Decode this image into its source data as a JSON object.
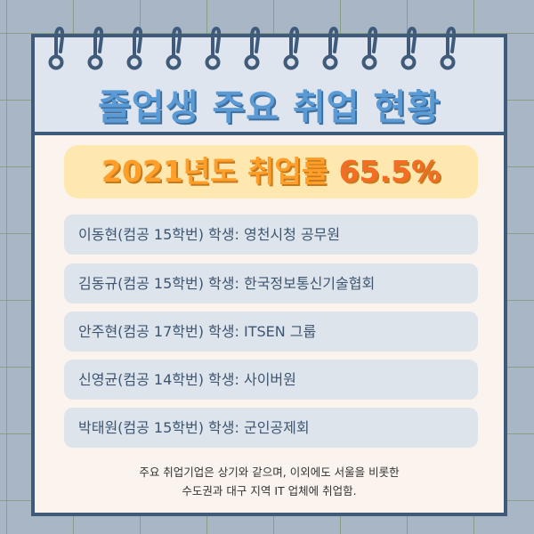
{
  "title": "졸업생 주요 취업 현황",
  "rate": {
    "prefix": "2021년도 취업률",
    "value": "65.5%"
  },
  "items": [
    "이동현(컴공 15학번) 학생: 영천시청 공무원",
    "김동규(컴공 15학번) 학생: 한국정보통신기술협회",
    "안주현(컴공 17학번) 학생: ITSEN 그룹",
    "신영균(컴공 14학번) 학생: 사이버원",
    "박태원(컴공 15학번) 학생: 군인공제회"
  ],
  "footer": {
    "line1": "주요 취업기업은 상기와 같으며, 이외에도 서울을 비롯한",
    "line2": "수도권과 대구 지역 IT 업체에 취업함."
  },
  "colors": {
    "border": "#3f5b79",
    "title": "#5b9bd5",
    "rate": "#ff9f2a",
    "percent": "#f46d25"
  }
}
